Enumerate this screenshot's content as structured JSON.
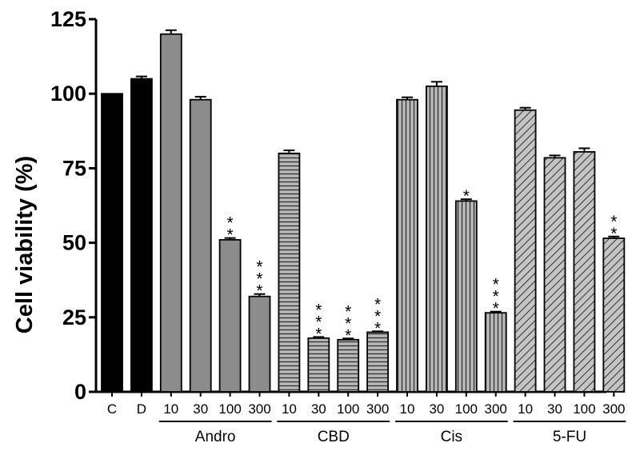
{
  "chart_data": {
    "type": "bar",
    "title": "",
    "xlabel": "",
    "ylabel": "Cell viability (%)",
    "ylim": [
      0,
      125
    ],
    "yticks": [
      "0",
      "25",
      "50",
      "75",
      "100",
      "125"
    ],
    "grid": false,
    "categories": [
      "C",
      "D",
      "10",
      "30",
      "100",
      "300",
      "10",
      "30",
      "100",
      "300",
      "10",
      "30",
      "100",
      "300",
      "10",
      "30",
      "100",
      "300"
    ],
    "values": [
      100,
      105,
      120,
      98,
      51,
      32,
      80,
      18,
      17.5,
      20,
      98,
      102.5,
      64,
      26.5,
      94.5,
      78.5,
      80.5,
      51.5
    ],
    "errors": [
      0,
      0.8,
      1.3,
      1,
      0.6,
      0.8,
      1,
      0.4,
      0.4,
      0.3,
      0.8,
      1.5,
      0.6,
      0.4,
      0.8,
      0.8,
      1.2,
      0.6
    ],
    "significance": [
      "",
      "",
      "",
      "",
      "**",
      "***",
      "",
      "***",
      "***",
      "***",
      "",
      "",
      "*",
      "***",
      "",
      "",
      "",
      "**"
    ],
    "fills": [
      "solid-black",
      "solid-black",
      "solid-gray",
      "solid-gray",
      "solid-gray",
      "solid-gray",
      "horizontal-lines",
      "horizontal-lines",
      "horizontal-lines",
      "horizontal-lines",
      "vertical-lines",
      "vertical-lines",
      "vertical-lines",
      "vertical-lines",
      "diagonal-lines",
      "diagonal-lines",
      "diagonal-lines",
      "diagonal-lines"
    ],
    "groups": [
      {
        "label": "Andro",
        "start": 2,
        "end": 5
      },
      {
        "label": "CBD",
        "start": 6,
        "end": 9
      },
      {
        "label": "Cis",
        "start": 10,
        "end": 13
      },
      {
        "label": "5-FU",
        "start": 14,
        "end": 17
      }
    ]
  }
}
